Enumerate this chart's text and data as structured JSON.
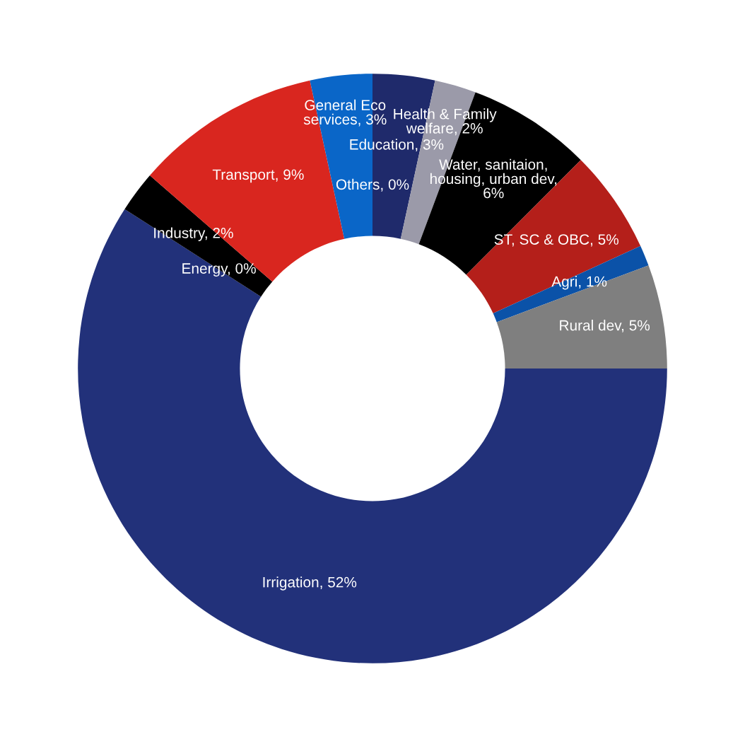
{
  "chart_data": {
    "type": "donut",
    "categories": [
      "Education",
      "Health & Family\nwelfare",
      "Water, sanitaion,\nhousing, urban dev",
      "ST, SC & OBC",
      "Agri",
      "Rural dev",
      "Irrigation",
      "Energy",
      "Industry",
      "Transport",
      "General Eco\nservices",
      "Others"
    ],
    "values": [
      3,
      2,
      6,
      5,
      1,
      5,
      52,
      0,
      2,
      9,
      3,
      0
    ],
    "value_labels": [
      ", 3%",
      ", 2%",
      ",\n6%",
      ", 5%",
      ", 1%",
      ", 5%",
      ", 52%",
      ", 0%",
      ", 2%",
      ", 9%",
      ", 3%",
      ", 0%"
    ],
    "colors": [
      "#1f2a6b",
      "#9b9aa9",
      "#000000",
      "#b41f1a",
      "#0b52a8",
      "#7f7f7f",
      "#22317a",
      "#22317a",
      "#000000",
      "#d9261f",
      "#0a66c8",
      "#0a66c8"
    ],
    "legend": false
  }
}
